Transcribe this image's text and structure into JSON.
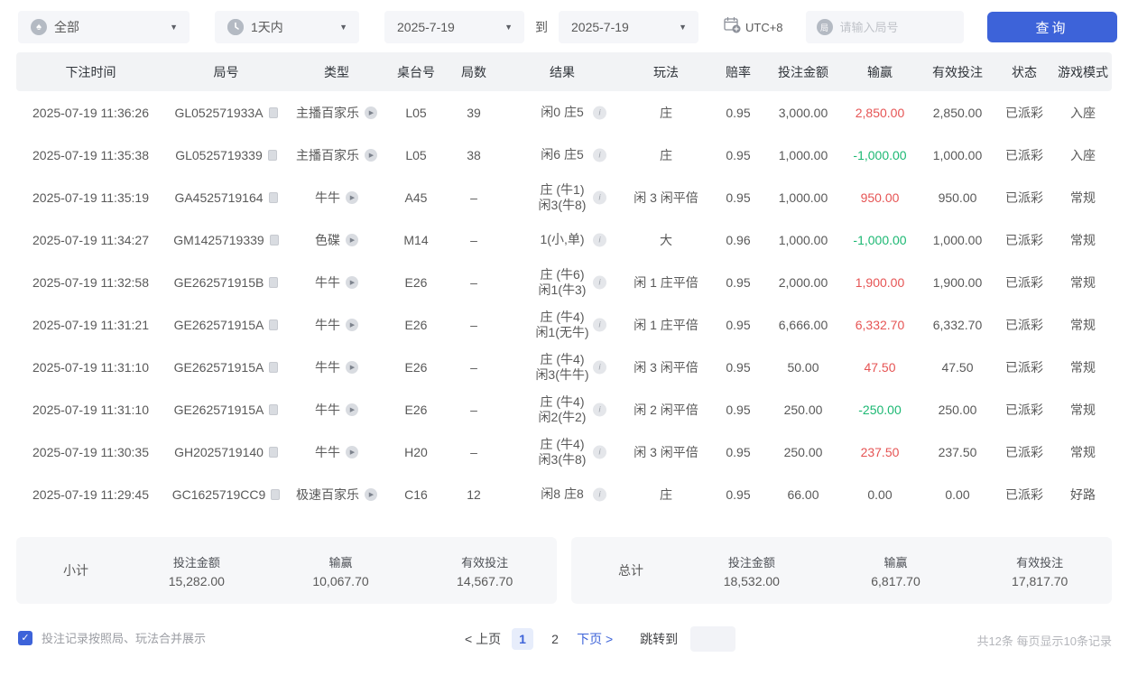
{
  "theme": {
    "accent_blue": "#3d63d9",
    "win_red": "#e65454",
    "loss_green": "#1cb873"
  },
  "filters": {
    "game_type": {
      "value": "全部",
      "icon": "spade"
    },
    "time_range": {
      "value": "1天内",
      "icon": "clock"
    },
    "date_from": "2025-7-19",
    "to_label": "到",
    "date_to": "2025-7-19",
    "timezone": "UTC+8",
    "round_input_placeholder": "请输入局号",
    "search_button": "查询"
  },
  "table": {
    "headers": [
      "下注时间",
      "局号",
      "类型",
      "桌台号",
      "局数",
      "结果",
      "玩法",
      "赔率",
      "投注金额",
      "输赢",
      "有效投注",
      "状态",
      "游戏模式"
    ],
    "rows": [
      {
        "time": "2025-07-19 11:36:26",
        "round_id": "GL052571933A",
        "type": "主播百家乐",
        "table_no": "L05",
        "rounds": "39",
        "result": [
          "闲0 庄5"
        ],
        "play": "庄",
        "odds": "0.95",
        "bet_amount": "3,000.00",
        "win_loss": "2,850.00",
        "win_loss_color": "red",
        "valid_bet": "2,850.00",
        "status": "已派彩",
        "mode": "入座"
      },
      {
        "time": "2025-07-19 11:35:38",
        "round_id": "GL0525719339",
        "type": "主播百家乐",
        "table_no": "L05",
        "rounds": "38",
        "result": [
          "闲6 庄5"
        ],
        "play": "庄",
        "odds": "0.95",
        "bet_amount": "1,000.00",
        "win_loss": "-1,000.00",
        "win_loss_color": "green",
        "valid_bet": "1,000.00",
        "status": "已派彩",
        "mode": "入座"
      },
      {
        "time": "2025-07-19 11:35:19",
        "round_id": "GA4525719164",
        "type": "牛牛",
        "table_no": "A45",
        "rounds": "–",
        "result": [
          "庄 (牛1)",
          "闲3(牛8)"
        ],
        "play": "闲 3 闲平倍",
        "odds": "0.95",
        "bet_amount": "1,000.00",
        "win_loss": "950.00",
        "win_loss_color": "red",
        "valid_bet": "950.00",
        "status": "已派彩",
        "mode": "常规"
      },
      {
        "time": "2025-07-19 11:34:27",
        "round_id": "GM1425719339",
        "type": "色碟",
        "table_no": "M14",
        "rounds": "–",
        "result": [
          "1(小,单)"
        ],
        "play": "大",
        "odds": "0.96",
        "bet_amount": "1,000.00",
        "win_loss": "-1,000.00",
        "win_loss_color": "green",
        "valid_bet": "1,000.00",
        "status": "已派彩",
        "mode": "常规"
      },
      {
        "time": "2025-07-19 11:32:58",
        "round_id": "GE262571915B",
        "type": "牛牛",
        "table_no": "E26",
        "rounds": "–",
        "result": [
          "庄 (牛6)",
          "闲1(牛3)"
        ],
        "play": "闲 1 庄平倍",
        "odds": "0.95",
        "bet_amount": "2,000.00",
        "win_loss": "1,900.00",
        "win_loss_color": "red",
        "valid_bet": "1,900.00",
        "status": "已派彩",
        "mode": "常规"
      },
      {
        "time": "2025-07-19 11:31:21",
        "round_id": "GE262571915A",
        "type": "牛牛",
        "table_no": "E26",
        "rounds": "–",
        "result": [
          "庄 (牛4)",
          "闲1(无牛)"
        ],
        "play": "闲 1 庄平倍",
        "odds": "0.95",
        "bet_amount": "6,666.00",
        "win_loss": "6,332.70",
        "win_loss_color": "red",
        "valid_bet": "6,332.70",
        "status": "已派彩",
        "mode": "常规"
      },
      {
        "time": "2025-07-19 11:31:10",
        "round_id": "GE262571915A",
        "type": "牛牛",
        "table_no": "E26",
        "rounds": "–",
        "result": [
          "庄 (牛4)",
          "闲3(牛牛)"
        ],
        "play": "闲 3 闲平倍",
        "odds": "0.95",
        "bet_amount": "50.00",
        "win_loss": "47.50",
        "win_loss_color": "red",
        "valid_bet": "47.50",
        "status": "已派彩",
        "mode": "常规"
      },
      {
        "time": "2025-07-19 11:31:10",
        "round_id": "GE262571915A",
        "type": "牛牛",
        "table_no": "E26",
        "rounds": "–",
        "result": [
          "庄 (牛4)",
          "闲2(牛2)"
        ],
        "play": "闲 2 闲平倍",
        "odds": "0.95",
        "bet_amount": "250.00",
        "win_loss": "-250.00",
        "win_loss_color": "green",
        "valid_bet": "250.00",
        "status": "已派彩",
        "mode": "常规"
      },
      {
        "time": "2025-07-19 11:30:35",
        "round_id": "GH2025719140",
        "type": "牛牛",
        "table_no": "H20",
        "rounds": "–",
        "result": [
          "庄 (牛4)",
          "闲3(牛8)"
        ],
        "play": "闲 3 闲平倍",
        "odds": "0.95",
        "bet_amount": "250.00",
        "win_loss": "237.50",
        "win_loss_color": "red",
        "valid_bet": "237.50",
        "status": "已派彩",
        "mode": "常规"
      },
      {
        "time": "2025-07-19 11:29:45",
        "round_id": "GC1625719CC9",
        "type": "极速百家乐",
        "table_no": "C16",
        "rounds": "12",
        "result": [
          "闲8 庄8"
        ],
        "play": "庄",
        "odds": "0.95",
        "bet_amount": "66.00",
        "win_loss": "0.00",
        "win_loss_color": "neutral",
        "valid_bet": "0.00",
        "status": "已派彩",
        "mode": "好路"
      }
    ]
  },
  "summary": {
    "subtotal": {
      "label": "小计",
      "stats": [
        {
          "label": "投注金额",
          "value": "15,282.00"
        },
        {
          "label": "输赢",
          "value": "10,067.70",
          "color": "red"
        },
        {
          "label": "有效投注",
          "value": "14,567.70"
        }
      ]
    },
    "total": {
      "label": "总计",
      "stats": [
        {
          "label": "投注金额",
          "value": "18,532.00"
        },
        {
          "label": "输赢",
          "value": "6,817.70",
          "color": "red"
        },
        {
          "label": "有效投注",
          "value": "17,817.70"
        }
      ]
    }
  },
  "footer": {
    "merge_checkbox_label": "投注记录按照局、玩法合并展示",
    "merge_checkbox_checked": true,
    "pagination": {
      "prev": "< 上页",
      "pages": [
        "1",
        "2"
      ],
      "active_page": "1",
      "next": "下页 >",
      "jump_label": "跳转到"
    },
    "total_info": "共12条  每页显示10条记录"
  }
}
